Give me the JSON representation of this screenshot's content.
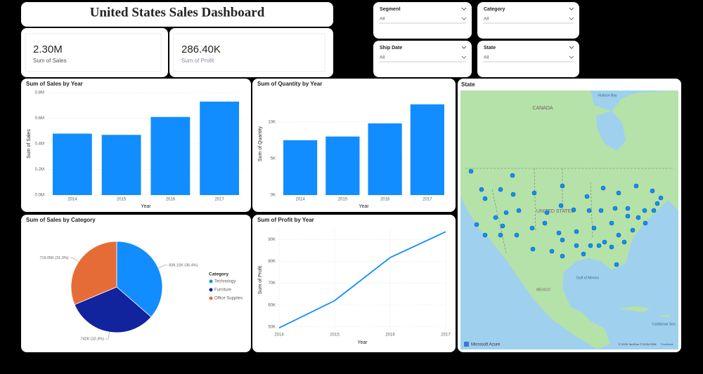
{
  "header": {
    "title": "United States Sales Dashboard"
  },
  "cards": [
    {
      "value": "2.30M",
      "label": "Sum of Sales"
    },
    {
      "value": "286.40K",
      "label": "Sum of Profit"
    }
  ],
  "slicers": [
    {
      "label": "Segment",
      "value": "All"
    },
    {
      "label": "Category",
      "value": "All"
    },
    {
      "label": "Ship Date",
      "value": "All"
    },
    {
      "label": "State",
      "value": "All"
    }
  ],
  "chart_data": [
    {
      "type": "bar",
      "title": "Sum of Sales by Year",
      "categories": [
        "2014",
        "2015",
        "2016",
        "2017"
      ],
      "values": [
        0.48,
        0.47,
        0.61,
        0.73
      ],
      "color": "#118dff",
      "xlabel": "Year",
      "ylabel": "Sum of Sales",
      "ylim": [
        0,
        0.8
      ],
      "yticks": [
        {
          "value": 0,
          "label": "0.0M"
        },
        {
          "value": 0.2,
          "label": "0.2M"
        },
        {
          "value": 0.4,
          "label": "0.4M"
        },
        {
          "value": 0.6,
          "label": "0.6M"
        },
        {
          "value": 0.8,
          "label": "0.8M"
        }
      ],
      "grid": true
    },
    {
      "type": "bar",
      "title": "Sum of Quantity by Year",
      "categories": [
        "2014",
        "2015",
        "2016",
        "2017"
      ],
      "values": [
        7500,
        8000,
        9800,
        12400
      ],
      "color": "#118dff",
      "xlabel": "Year",
      "ylabel": "Sum of Quantity",
      "ylim": [
        0,
        14000
      ],
      "yticks": [
        {
          "value": 0,
          "label": "0K"
        },
        {
          "value": 5000,
          "label": "5K"
        },
        {
          "value": 10000,
          "label": "10K"
        }
      ],
      "grid": true
    },
    {
      "type": "pie",
      "title": "Sum of Sales by Category",
      "categories": [
        "Technology",
        "Furniture",
        "Office Supplies"
      ],
      "values": [
        836150,
        742000,
        719050
      ],
      "value_labels": [
        "836.15K (36.4%)",
        "742K (32.3%)",
        "719.05K (31.3%)"
      ],
      "colors": [
        "#118dff",
        "#12239e",
        "#e66c37"
      ],
      "legend_title": "Category",
      "legend": "right"
    },
    {
      "type": "line",
      "title": "Sum of Profit by Year",
      "categories": [
        "2014",
        "2015",
        "2016",
        "2017"
      ],
      "values": [
        49500,
        62000,
        81800,
        93600
      ],
      "color": "#118dff",
      "xlabel": "Year",
      "ylabel": "Sum of Profit",
      "ylim": [
        48000,
        95000
      ],
      "yticks": [
        {
          "value": 50000,
          "label": "50K"
        },
        {
          "value": 60000,
          "label": "60K"
        },
        {
          "value": 70000,
          "label": "70K"
        },
        {
          "value": 80000,
          "label": "80K"
        },
        {
          "value": 90000,
          "label": "90K"
        }
      ],
      "grid": true
    }
  ],
  "map": {
    "title": "State",
    "labels": [
      "Hudson Bay",
      "CANADA",
      "UNITED STATES",
      "Gulf of Mexico",
      "MEXICO",
      "Caribbean Sea"
    ],
    "attribution": "Microsoft Azure",
    "copyright": "© 2026 TomTom © 2026 OSM",
    "feedback": "Feedback"
  }
}
